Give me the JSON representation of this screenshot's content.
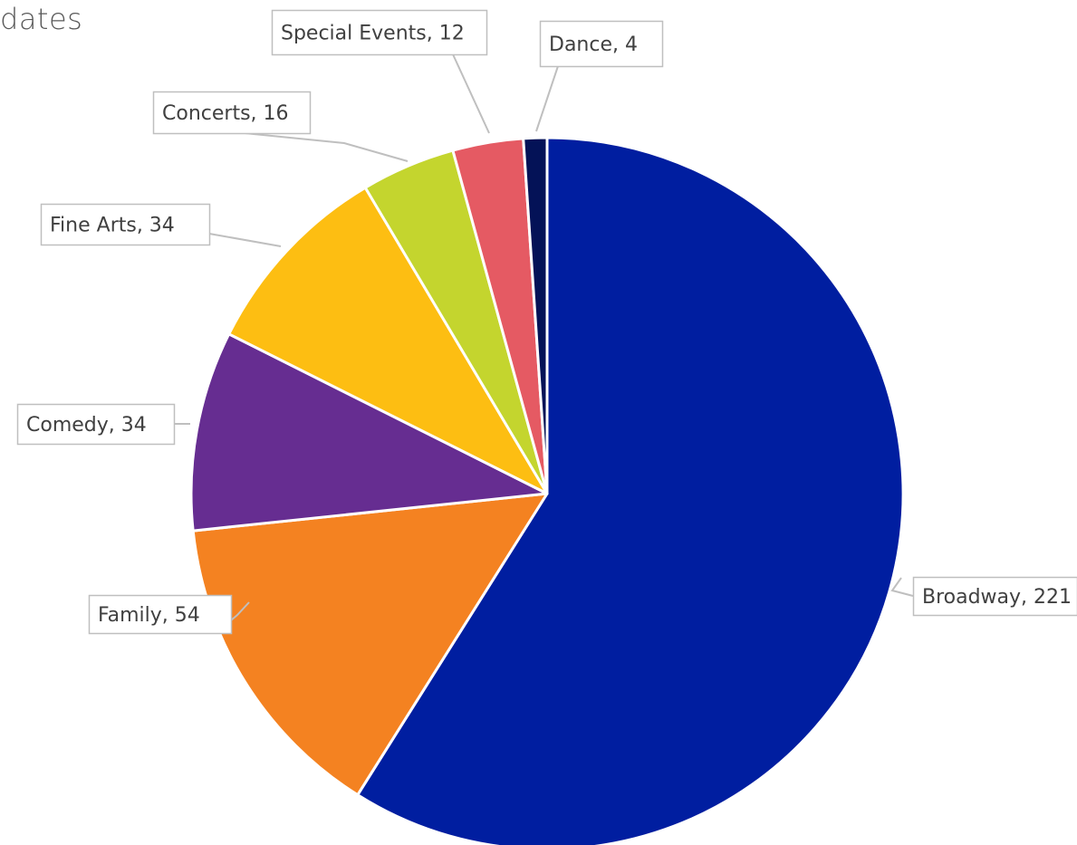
{
  "chart_data": {
    "type": "pie",
    "title": "dates",
    "categories": [
      "Broadway",
      "Family",
      "Comedy",
      "Fine Arts",
      "Concerts",
      "Special Events",
      "Dance"
    ],
    "values": [
      221,
      54,
      34,
      34,
      16,
      12,
      4
    ],
    "colors": [
      "#001ea0",
      "#f48221",
      "#662d91",
      "#fdbe12",
      "#c4d52e",
      "#e55a63",
      "#041257"
    ],
    "labels": [
      "Broadway, 221",
      "Family, 54",
      "Comedy, 34",
      "Fine Arts, 34",
      "Concerts, 16",
      "Special Events, 12",
      "Dance, 4"
    ],
    "start_angle": "12 o'clock, clockwise",
    "legend": "none; data callout labels with leader lines"
  }
}
